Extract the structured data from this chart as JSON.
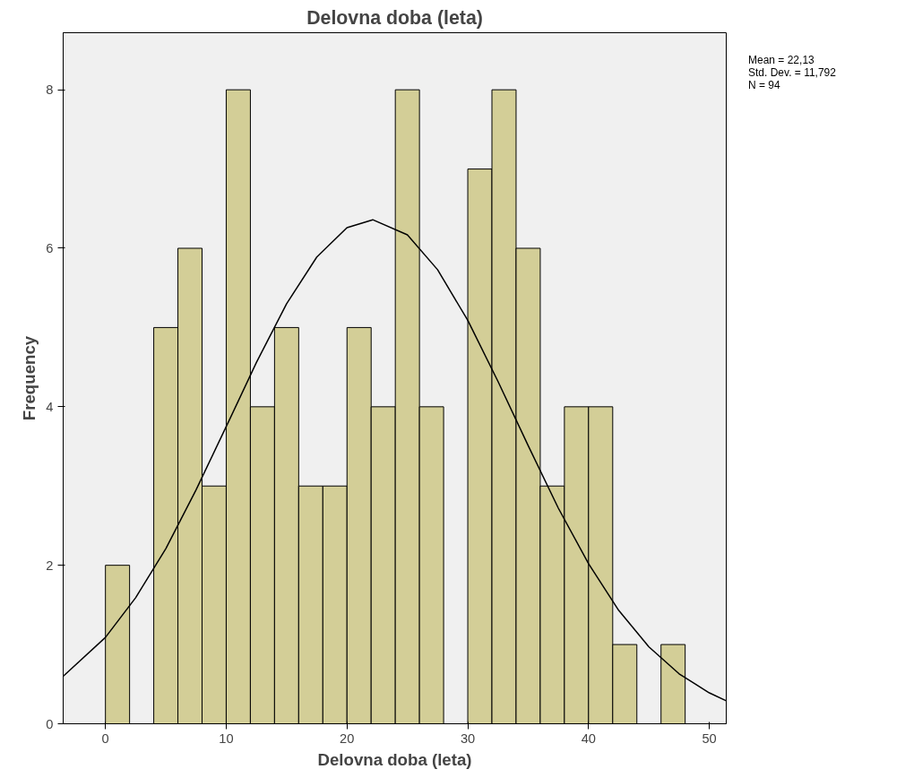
{
  "chart_data": {
    "type": "histogram",
    "title": "Delovna doba (leta)",
    "xlabel": "Delovna doba (leta)",
    "ylabel": "Frequency",
    "bins": [
      0,
      2,
      4,
      6,
      8,
      10,
      12,
      14,
      16,
      18,
      20,
      22,
      24,
      26,
      28,
      30,
      32,
      34,
      36,
      38,
      40,
      42,
      44,
      46,
      48
    ],
    "values": [
      2,
      0,
      5,
      6,
      3,
      8,
      4,
      5,
      3,
      3,
      5,
      4,
      8,
      4,
      0,
      7,
      8,
      6,
      3,
      4,
      4,
      1,
      0,
      1
    ],
    "color": "#d3ce97",
    "series": [
      {
        "type": "line",
        "color": "#000000",
        "x": [
          -3.5,
          0,
          2.5,
          5,
          7.5,
          10,
          12.5,
          15,
          17.5,
          20,
          22.13,
          25,
          27.5,
          30,
          32.5,
          35,
          37.5,
          40,
          42.5,
          45,
          47.5,
          50,
          51.4
        ],
        "values": [
          0.6,
          1.09,
          1.59,
          2.21,
          2.95,
          3.75,
          4.56,
          5.3,
          5.89,
          6.26,
          6.36,
          6.17,
          5.73,
          5.09,
          4.32,
          3.51,
          2.72,
          2.02,
          1.43,
          0.97,
          0.63,
          0.39,
          0.29
        ]
      }
    ],
    "xlim": [
      -3.5,
      51.4
    ],
    "ylim": [
      0,
      8.72
    ],
    "xticks": [
      0,
      10,
      20,
      30,
      40,
      50
    ],
    "yticks": [
      0,
      2,
      4,
      6,
      8
    ],
    "grid": false,
    "annotations": [
      "Mean = 22,13",
      "Std. Dev. = 11,792",
      "N = 94"
    ]
  }
}
